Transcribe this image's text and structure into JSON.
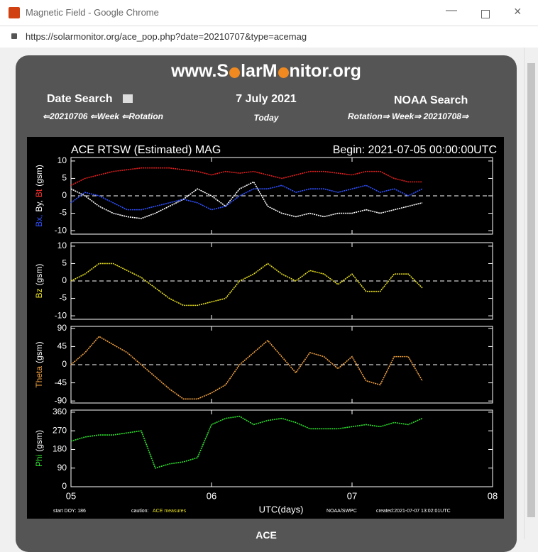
{
  "window": {
    "title": "Magnetic Field - Google Chrome",
    "url": "https://solarmonitor.org/ace_pop.php?date=20210707&type=acemag"
  },
  "header": {
    "site_parts": [
      "www.S",
      "larM",
      "nitor.org"
    ],
    "date_search": "Date Search",
    "date": "7 July 2021",
    "noaa_search": "NOAA Search",
    "nav_left": "⇐20210706 ⇐Week ⇐Rotation",
    "today": "Today",
    "nav_right": "Rotation⇒ Week⇒ 20210708⇒"
  },
  "plot": {
    "title": "ACE RTSW (Estimated) MAG",
    "begin": "Begin: 2021-07-05 00:00:00UTC",
    "xlabel": "UTC(days)",
    "start_doy": "start DOY:  186",
    "caution": "caution:",
    "caution_note": "ACE measures",
    "source": "NOAA/SWPC",
    "created": "created:2021-07-07 13:02:01UTC"
  },
  "chart_data": [
    {
      "type": "line",
      "ylabel": [
        {
          "text": "Bx,",
          "color": "#3050ff"
        },
        {
          "text": "By,",
          "color": "#ffffff"
        },
        {
          "text": "Bt",
          "color": "#ff3030"
        },
        {
          "text": "(gsm)",
          "color": "#ffffff"
        }
      ],
      "x": [
        0,
        0.1,
        0.2,
        0.3,
        0.4,
        0.5,
        0.6,
        0.7,
        0.8,
        0.9,
        1,
        1.1,
        1.2,
        1.3,
        1.4,
        1.5,
        1.6,
        1.7,
        1.8,
        1.9,
        2,
        2.1,
        2.2,
        2.3,
        2.4,
        2.5
      ],
      "xlim": [
        0,
        3
      ],
      "ylim": [
        -11,
        11
      ],
      "yticks": [
        -10,
        -5,
        0,
        5,
        10
      ],
      "zero_line": true,
      "series": [
        {
          "name": "Bt",
          "color": "#e02020",
          "values": [
            3,
            5,
            6,
            7,
            7.5,
            8,
            8,
            8,
            7.5,
            7,
            6,
            7,
            6.5,
            7,
            6,
            5,
            6,
            7,
            7,
            6.5,
            6,
            7,
            7,
            5,
            4,
            4
          ]
        },
        {
          "name": "By",
          "color": "#ffffff",
          "values": [
            2,
            0,
            -3,
            -5,
            -6,
            -6.5,
            -5,
            -3,
            -1,
            2,
            0,
            -3,
            2,
            4,
            -3,
            -5,
            -6,
            -5,
            -6,
            -5,
            -5,
            -4,
            -5,
            -4,
            -3,
            -2
          ]
        },
        {
          "name": "Bx",
          "color": "#3050ff",
          "values": [
            -2,
            1,
            0,
            -2,
            -4,
            -4,
            -3,
            -2,
            -1,
            -2,
            -4,
            -3,
            0,
            2,
            2,
            3,
            1,
            2,
            2,
            1,
            2,
            3,
            1,
            2,
            0,
            2
          ]
        }
      ]
    },
    {
      "type": "line",
      "ylabel": [
        {
          "text": "Bz",
          "color": "#e8e020"
        },
        {
          "text": "(gsm)",
          "color": "#ffffff"
        }
      ],
      "x": [
        0,
        0.1,
        0.2,
        0.3,
        0.4,
        0.5,
        0.6,
        0.7,
        0.8,
        0.9,
        1,
        1.1,
        1.2,
        1.3,
        1.4,
        1.5,
        1.6,
        1.7,
        1.8,
        1.9,
        2,
        2.1,
        2.2,
        2.3,
        2.4,
        2.5
      ],
      "xlim": [
        0,
        3
      ],
      "ylim": [
        -11,
        11
      ],
      "yticks": [
        -10,
        -5,
        0,
        5,
        10
      ],
      "zero_line": true,
      "series": [
        {
          "name": "Bz",
          "color": "#e8e020",
          "values": [
            0,
            2,
            5,
            5,
            3,
            1,
            -2,
            -5,
            -7,
            -7,
            -6,
            -5,
            0,
            2,
            5,
            2,
            0,
            3,
            2,
            -1,
            2,
            -3,
            -3,
            2,
            2,
            -2
          ]
        }
      ]
    },
    {
      "type": "line",
      "ylabel": [
        {
          "text": "Theta",
          "color": "#f0a040"
        },
        {
          "text": "(gsm)",
          "color": "#ffffff"
        }
      ],
      "x": [
        0,
        0.1,
        0.2,
        0.3,
        0.4,
        0.5,
        0.6,
        0.7,
        0.8,
        0.9,
        1,
        1.1,
        1.2,
        1.3,
        1.4,
        1.5,
        1.6,
        1.7,
        1.8,
        1.9,
        2,
        2.1,
        2.2,
        2.3,
        2.4,
        2.5
      ],
      "xlim": [
        0,
        3
      ],
      "ylim": [
        -95,
        95
      ],
      "yticks": [
        -90,
        -45,
        0,
        45,
        90
      ],
      "zero_line": true,
      "series": [
        {
          "name": "Theta",
          "color": "#f0a040",
          "values": [
            0,
            30,
            70,
            50,
            30,
            0,
            -30,
            -60,
            -85,
            -85,
            -70,
            -50,
            0,
            30,
            60,
            20,
            -20,
            30,
            20,
            -10,
            20,
            -40,
            -50,
            20,
            20,
            -40
          ]
        }
      ]
    },
    {
      "type": "line",
      "ylabel": [
        {
          "text": "Phi",
          "color": "#30e030"
        },
        {
          "text": "(gsm)",
          "color": "#ffffff"
        }
      ],
      "x": [
        0,
        0.1,
        0.2,
        0.3,
        0.4,
        0.5,
        0.6,
        0.7,
        0.8,
        0.9,
        1,
        1.1,
        1.2,
        1.3,
        1.4,
        1.5,
        1.6,
        1.7,
        1.8,
        1.9,
        2,
        2.1,
        2.2,
        2.3,
        2.4,
        2.5
      ],
      "xlim": [
        0,
        3
      ],
      "ylim": [
        0,
        370
      ],
      "yticks": [
        0,
        90,
        180,
        270,
        360
      ],
      "zero_line": false,
      "xticks": [
        {
          "value": 0,
          "label": "05"
        },
        {
          "value": 1,
          "label": "06"
        },
        {
          "value": 2,
          "label": "07"
        },
        {
          "value": 3,
          "label": "08"
        }
      ],
      "series": [
        {
          "name": "Phi",
          "color": "#30e030",
          "values": [
            220,
            240,
            250,
            250,
            260,
            270,
            90,
            110,
            120,
            140,
            300,
            330,
            340,
            300,
            320,
            330,
            310,
            280,
            280,
            280,
            290,
            300,
            290,
            310,
            300,
            330
          ]
        }
      ]
    }
  ],
  "footer": {
    "label": "ACE"
  }
}
